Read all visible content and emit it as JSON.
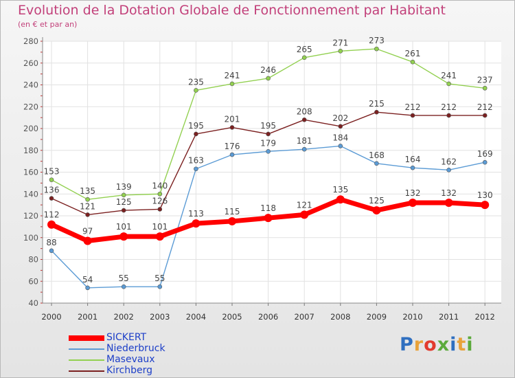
{
  "title": "Evolution de la Dotation Globale de Fonctionnement par Habitant",
  "subtitle": "(en € et par an)",
  "logo": {
    "text": "Proxiti",
    "colors": [
      "#2f6fc0",
      "#e8a23a",
      "#e23b2e",
      "#5caa3c",
      "#2f6fc0",
      "#e8a23a",
      "#5caa3c"
    ]
  },
  "chart_data": {
    "type": "line",
    "title": "Evolution de la Dotation Globale de Fonctionnement par Habitant",
    "ylabel": "(en € et par an)",
    "xlabel": "",
    "ylim": [
      40,
      280
    ],
    "yticks": [
      40,
      60,
      80,
      100,
      120,
      140,
      160,
      180,
      200,
      220,
      240,
      260,
      280
    ],
    "grid": true,
    "legend_position": "bottom-left",
    "categories": [
      "2000",
      "2001",
      "2002",
      "2003",
      "2004",
      "2005",
      "2006",
      "2007",
      "2008",
      "2009",
      "2010",
      "2011",
      "2012"
    ],
    "series": [
      {
        "name": "SICKERT",
        "color": "#ff0000",
        "emphasis": true,
        "values": [
          112,
          97,
          101,
          101,
          113,
          115,
          118,
          121,
          135,
          125,
          132,
          132,
          130
        ]
      },
      {
        "name": "Niederbruck",
        "color": "#5b9bd5",
        "emphasis": false,
        "values": [
          88,
          54,
          55,
          55,
          163,
          176,
          179,
          181,
          184,
          168,
          164,
          162,
          169
        ]
      },
      {
        "name": "Masevaux",
        "color": "#92d050",
        "emphasis": false,
        "values": [
          153,
          135,
          139,
          140,
          235,
          241,
          246,
          265,
          271,
          273,
          261,
          241,
          237
        ]
      },
      {
        "name": "Kirchberg",
        "color": "#7b2020",
        "emphasis": false,
        "values": [
          136,
          121,
          125,
          126,
          195,
          201,
          195,
          208,
          202,
          215,
          212,
          212,
          212
        ]
      }
    ]
  }
}
